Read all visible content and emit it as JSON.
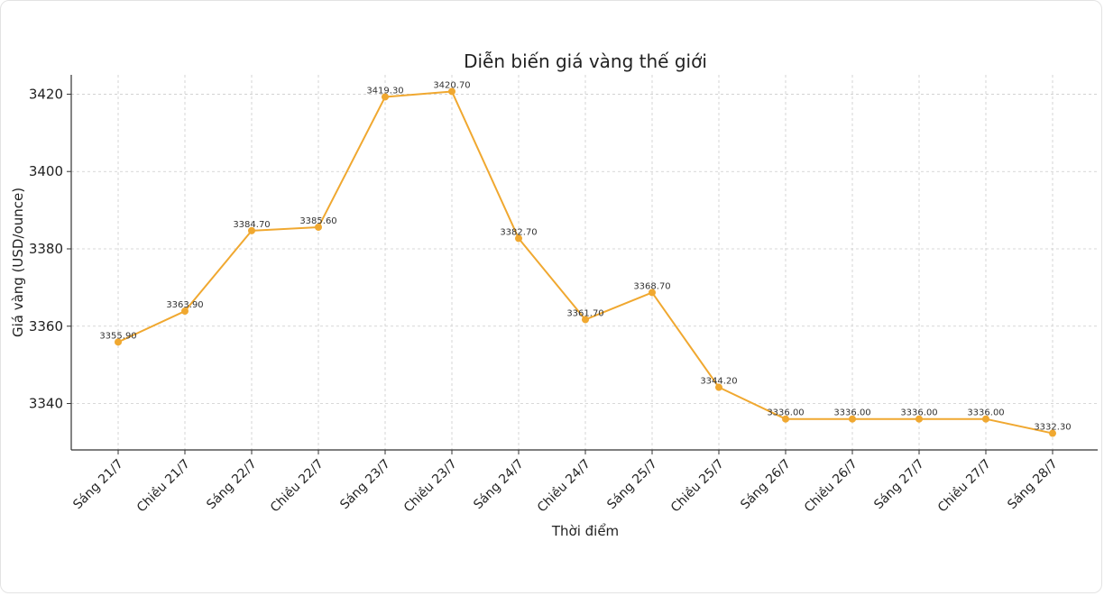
{
  "chart_data": {
    "type": "line",
    "title": "Diễn biến giá vàng thế giới",
    "xlabel": "Thời điểm",
    "ylabel": "Giá vàng (USD/ounce)",
    "categories": [
      "Sáng 21/7",
      "Chiều 21/7",
      "Sáng 22/7",
      "Chiều 22/7",
      "Sáng 23/7",
      "Chiều 23/7",
      "Sáng 24/7",
      "Chiều 24/7",
      "Sáng 25/7",
      "Chiều 25/7",
      "Sáng 26/7",
      "Chiều 26/7",
      "Sáng 27/7",
      "Chiều 27/7",
      "Sáng 28/7"
    ],
    "values": [
      3355.9,
      3363.9,
      3384.7,
      3385.6,
      3419.3,
      3420.7,
      3382.7,
      3361.7,
      3368.7,
      3344.2,
      3336.0,
      3336.0,
      3336.0,
      3336.0,
      3332.3
    ],
    "data_labels": [
      "3355.90",
      "3363.90",
      "3384.70",
      "3385.60",
      "3419.30",
      "3420.70",
      "3382.70",
      "3361.70",
      "3368.70",
      "3344.20",
      "3336.00",
      "3336.00",
      "3336.00",
      "3336.00",
      "3332.30"
    ],
    "yticks": [
      3340,
      3360,
      3380,
      3400,
      3420
    ],
    "ylim": [
      3328,
      3425
    ],
    "grid": true,
    "line_color": "#f0a830",
    "grid_color": "#cccccc",
    "axis_color": "#333333"
  }
}
